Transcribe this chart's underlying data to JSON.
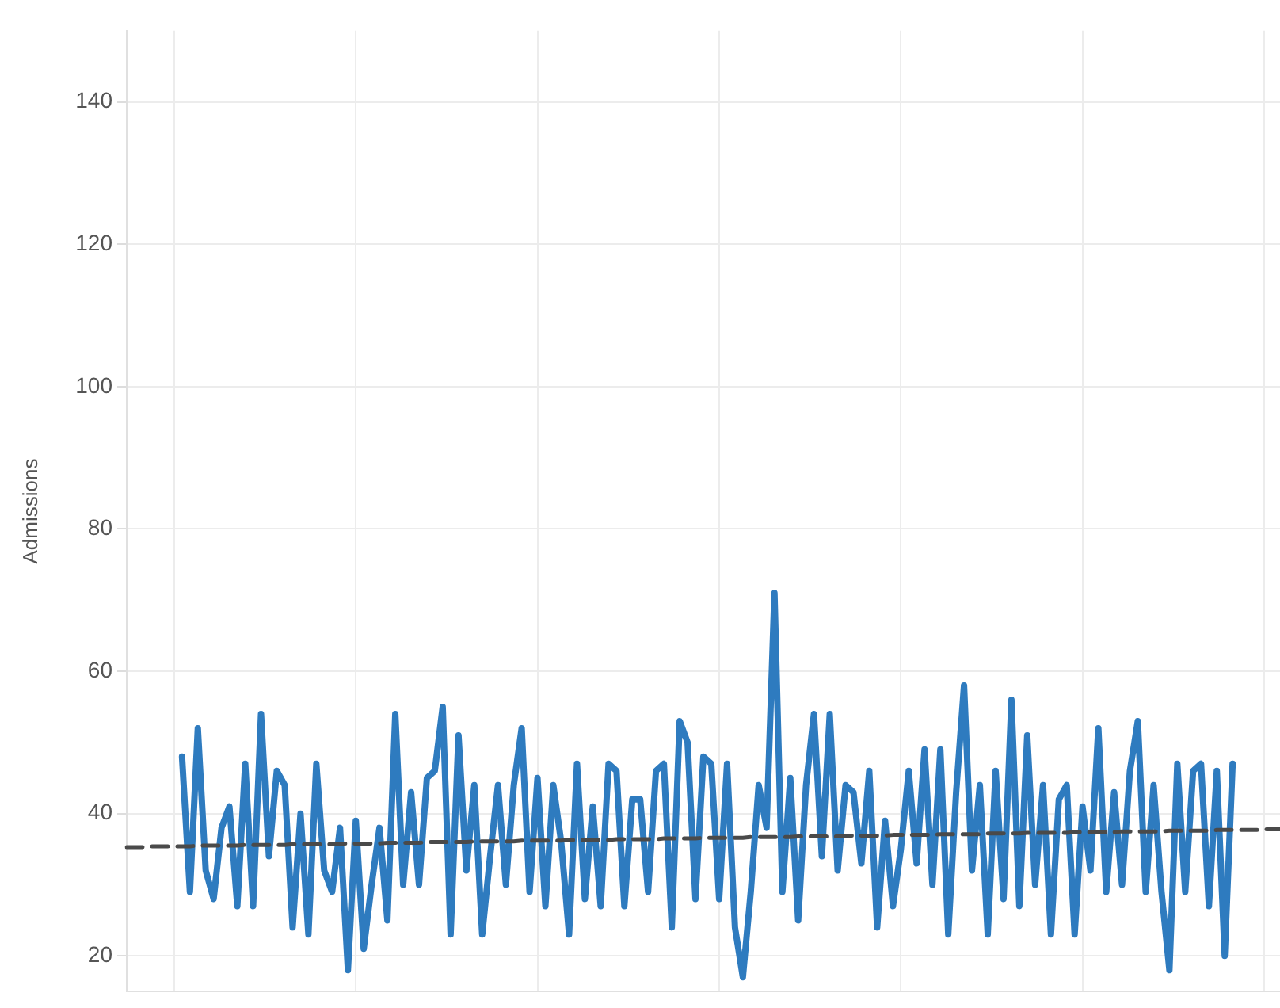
{
  "chart_data": {
    "type": "line",
    "ylabel": "Admissions",
    "categories": [
      null,
      null,
      null,
      null,
      null,
      null,
      null,
      null,
      null,
      null,
      null,
      null,
      null,
      null,
      null,
      null,
      null,
      null,
      null,
      null,
      null,
      null,
      null,
      null,
      null,
      null,
      null,
      null,
      null,
      null,
      null,
      null,
      null,
      null,
      null,
      null,
      null,
      null,
      null,
      null,
      null,
      null,
      null,
      null,
      null,
      null,
      null,
      null,
      null,
      null,
      null,
      null,
      null,
      null,
      null,
      null,
      null,
      null,
      null,
      null,
      null,
      null,
      null,
      null,
      null,
      null,
      null,
      null,
      null,
      null,
      null,
      null,
      null,
      null,
      null,
      null,
      null,
      null,
      null,
      null,
      null,
      null,
      null,
      null,
      null,
      null,
      null,
      null,
      null,
      null,
      null,
      null,
      null,
      null,
      null,
      null,
      null,
      null,
      null,
      null,
      null,
      null,
      null,
      null,
      null,
      null,
      null,
      null,
      null,
      null,
      null,
      null,
      null,
      null,
      null,
      null,
      null,
      null,
      null,
      null,
      null,
      null,
      null,
      null,
      null,
      null,
      null,
      null,
      null,
      null,
      null,
      null,
      null,
      null,
      null,
      null,
      null,
      null,
      null,
      null,
      null,
      null,
      null,
      null,
      null,
      null,
      null
    ],
    "series": [
      {
        "color": "#2e7bbf",
        "values": [
          null,
          null,
          null,
          null,
          null,
          null,
          null,
          48,
          29,
          52,
          32,
          28,
          38,
          41,
          27,
          47,
          27,
          54,
          34,
          46,
          44,
          24,
          40,
          23,
          47,
          32,
          29,
          38,
          18,
          39,
          21,
          30,
          38,
          25,
          54,
          30,
          43,
          30,
          45,
          46,
          55,
          23,
          51,
          32,
          44,
          23,
          34,
          44,
          30,
          44,
          52,
          29,
          45,
          27,
          44,
          36,
          23,
          47,
          28,
          41,
          27,
          47,
          46,
          27,
          42,
          42,
          29,
          46,
          47,
          24,
          53,
          50,
          28,
          48,
          47,
          28,
          47,
          24,
          17,
          29,
          44,
          38,
          71,
          29,
          45,
          25,
          44,
          54,
          34,
          54,
          32,
          44,
          43,
          33,
          46,
          24,
          39,
          27,
          35,
          46,
          33,
          49,
          30,
          49,
          23,
          43,
          58,
          32,
          44,
          23,
          46,
          28,
          56,
          27,
          51,
          30,
          44,
          23,
          42,
          44,
          23,
          41,
          32,
          52,
          29,
          43,
          30,
          46,
          53,
          29,
          44,
          29,
          18,
          47,
          29,
          46,
          47,
          27,
          46,
          20,
          47,
          null,
          null,
          null,
          null,
          null,
          null
        ]
      },
      {
        "type": "line",
        "color": "#4a4a4a",
        "line_style": "dashed",
        "values": [
          35.3,
          35.3,
          35.3,
          35.4,
          35.4,
          35.4,
          35.4,
          35.4,
          35.4,
          35.5,
          35.5,
          35.5,
          35.5,
          35.5,
          35.5,
          35.6,
          35.6,
          35.6,
          35.6,
          35.6,
          35.6,
          35.7,
          35.7,
          35.7,
          35.7,
          35.7,
          35.7,
          35.8,
          35.8,
          35.8,
          35.8,
          35.8,
          35.8,
          35.9,
          35.9,
          35.9,
          35.9,
          35.9,
          36.0,
          36.0,
          36.0,
          36.0,
          36.0,
          36.0,
          36.1,
          36.1,
          36.1,
          36.1,
          36.1,
          36.1,
          36.2,
          36.2,
          36.2,
          36.2,
          36.2,
          36.2,
          36.3,
          36.3,
          36.3,
          36.3,
          36.3,
          36.3,
          36.4,
          36.4,
          36.4,
          36.4,
          36.4,
          36.4,
          36.5,
          36.5,
          36.5,
          36.5,
          36.5,
          36.6,
          36.6,
          36.6,
          36.6,
          36.6,
          36.6,
          36.7,
          36.7,
          36.7,
          36.7,
          36.7,
          36.7,
          36.8,
          36.8,
          36.8,
          36.8,
          36.8,
          36.8,
          36.9,
          36.9,
          36.9,
          36.9,
          36.9,
          36.9,
          37.0,
          37.0,
          37.0,
          37.0,
          37.0,
          37.0,
          37.1,
          37.1,
          37.1,
          37.1,
          37.1,
          37.1,
          37.2,
          37.2,
          37.2,
          37.2,
          37.2,
          37.3,
          37.3,
          37.3,
          37.3,
          37.3,
          37.3,
          37.4,
          37.4,
          37.4,
          37.4,
          37.4,
          37.4,
          37.5,
          37.5,
          37.5,
          37.5,
          37.5,
          37.5,
          37.6,
          37.6,
          37.6,
          37.6,
          37.6,
          37.6,
          37.7,
          37.7,
          37.7,
          37.7,
          37.7,
          37.7,
          37.8,
          37.8,
          37.8
        ]
      }
    ],
    "ylim": [
      15,
      150
    ],
    "yticks": [
      20,
      40,
      60,
      80,
      100,
      120,
      140
    ],
    "grid": true,
    "tick_labels": "y",
    "marker": "none",
    "line_style": "solid",
    "legend": false
  }
}
